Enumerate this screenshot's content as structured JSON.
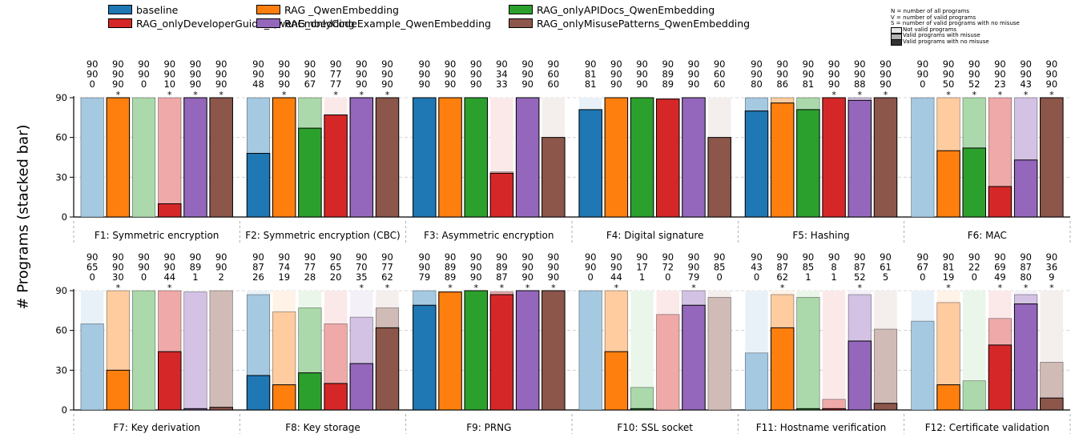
{
  "chart_data": {
    "type": "bar",
    "subtype": "stacked-bar small multiples (2 rows x 6 panels)",
    "ylabel": "# Programs (stacked bar)",
    "ylim": [
      0,
      90
    ],
    "yticks": [
      0,
      30,
      60,
      90
    ],
    "grid": "horizontal dashed",
    "legend_position": "top",
    "series_names": [
      "baseline",
      "RAG _QwenEmbedding",
      "RAG_onlyAPIDocs_QwenEmbedding",
      "RAG_onlyDeveloperGuide_QwenEmbedding",
      "RAG_onlyCodeExample_QwenEmbedding",
      "RAG_onlyMisusePatterns_QwenEmbedding"
    ],
    "series_colors": [
      "#1f77b4",
      "#ff7f0e",
      "#2ca02c",
      "#d62728",
      "#9467bd",
      "#8c564b"
    ],
    "legend_layout": [
      0,
      3,
      1,
      4,
      2,
      5
    ],
    "notes": [
      "N = number of all programs",
      "V = number of valid programs",
      "S = number of valid programs with no misuse"
    ],
    "shade_legend": [
      "Not valid programs",
      "Valid programs with misuse",
      "Valid programs with no misuse"
    ],
    "panels": [
      {
        "label": "F1: Symmetric encryption",
        "N": [
          90,
          90,
          90,
          90,
          90,
          90
        ],
        "V": [
          90,
          90,
          90,
          90,
          90,
          90
        ],
        "S": [
          0,
          90,
          0,
          10,
          90,
          90
        ],
        "star": [
          false,
          true,
          false,
          true,
          true,
          true
        ]
      },
      {
        "label": "F2: Symmetric encryption (CBC)",
        "N": [
          90,
          90,
          90,
          90,
          90,
          90
        ],
        "V": [
          90,
          90,
          90,
          77,
          90,
          90
        ],
        "S": [
          48,
          90,
          67,
          77,
          90,
          90
        ],
        "star": [
          false,
          true,
          false,
          true,
          true,
          true
        ]
      },
      {
        "label": "F3: Asymmetric encryption",
        "N": [
          90,
          90,
          90,
          90,
          90,
          90
        ],
        "V": [
          90,
          90,
          90,
          34,
          90,
          60
        ],
        "S": [
          90,
          90,
          90,
          33,
          90,
          60
        ],
        "star": [
          false,
          false,
          false,
          false,
          false,
          false
        ]
      },
      {
        "label": "F4: Digital signature",
        "N": [
          90,
          90,
          90,
          90,
          90,
          90
        ],
        "V": [
          81,
          90,
          90,
          89,
          90,
          60
        ],
        "S": [
          81,
          90,
          90,
          89,
          90,
          60
        ],
        "star": [
          false,
          false,
          false,
          false,
          false,
          false
        ]
      },
      {
        "label": "F5: Hashing",
        "N": [
          90,
          90,
          90,
          90,
          90,
          90
        ],
        "V": [
          90,
          90,
          90,
          90,
          90,
          90
        ],
        "S": [
          80,
          86,
          81,
          90,
          88,
          90
        ],
        "star": [
          false,
          false,
          false,
          true,
          true,
          true
        ]
      },
      {
        "label": "F6: MAC",
        "N": [
          90,
          90,
          90,
          90,
          90,
          90
        ],
        "V": [
          90,
          90,
          90,
          90,
          90,
          90
        ],
        "S": [
          0,
          50,
          52,
          23,
          43,
          90
        ],
        "star": [
          false,
          true,
          true,
          true,
          true,
          true
        ]
      },
      {
        "label": "F7: Key derivation",
        "N": [
          90,
          90,
          90,
          90,
          90,
          90
        ],
        "V": [
          65,
          90,
          90,
          90,
          89,
          90
        ],
        "S": [
          0,
          30,
          0,
          44,
          1,
          2
        ],
        "star": [
          false,
          true,
          false,
          true,
          false,
          false
        ]
      },
      {
        "label": "F8: Key storage",
        "N": [
          90,
          90,
          90,
          90,
          90,
          90
        ],
        "V": [
          87,
          74,
          77,
          65,
          70,
          77
        ],
        "S": [
          26,
          19,
          28,
          20,
          35,
          62
        ],
        "star": [
          false,
          false,
          false,
          false,
          true,
          true
        ]
      },
      {
        "label": "F9: PRNG",
        "N": [
          90,
          90,
          90,
          90,
          90,
          90
        ],
        "V": [
          90,
          89,
          90,
          89,
          90,
          90
        ],
        "S": [
          79,
          89,
          90,
          87,
          90,
          90
        ],
        "star": [
          false,
          true,
          true,
          true,
          true,
          true
        ]
      },
      {
        "label": "F10: SSL socket",
        "N": [
          90,
          90,
          90,
          90,
          90,
          90
        ],
        "V": [
          90,
          90,
          17,
          72,
          90,
          85
        ],
        "S": [
          0,
          44,
          1,
          0,
          79,
          0
        ],
        "star": [
          false,
          true,
          false,
          false,
          true,
          false
        ]
      },
      {
        "label": "F11: Hostname verification",
        "N": [
          90,
          90,
          90,
          90,
          90,
          90
        ],
        "V": [
          43,
          87,
          85,
          8,
          87,
          61
        ],
        "S": [
          0,
          62,
          1,
          1,
          52,
          5
        ],
        "star": [
          false,
          true,
          false,
          false,
          true,
          false
        ]
      },
      {
        "label": "F12: Certificate validation",
        "N": [
          90,
          90,
          90,
          90,
          90,
          90
        ],
        "V": [
          67,
          81,
          22,
          69,
          87,
          36
        ],
        "S": [
          0,
          19,
          0,
          49,
          80,
          9
        ],
        "star": [
          false,
          true,
          false,
          true,
          true,
          true
        ]
      }
    ]
  }
}
